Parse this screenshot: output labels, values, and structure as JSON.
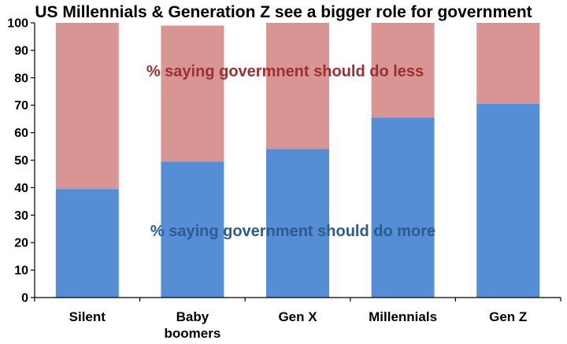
{
  "chart_data": {
    "type": "bar",
    "stacked": true,
    "title": "US Millennials & Generation Z see a bigger role for government",
    "categories": [
      "Silent",
      "Baby boomers",
      "Gen X",
      "Millennials",
      "Gen Z"
    ],
    "category_lines": [
      [
        "Silent"
      ],
      [
        "Baby",
        "boomers"
      ],
      [
        "Gen X"
      ],
      [
        "Millennials"
      ],
      [
        "Gen Z"
      ]
    ],
    "series": [
      {
        "name": "% saying government should do more",
        "color": "#558ed5",
        "values": [
          39.5,
          49.5,
          54,
          65.5,
          70.5
        ]
      },
      {
        "name": "% saying government should do less",
        "color": "#d99594",
        "values": [
          60.5,
          49.5,
          46,
          34.5,
          29.5
        ]
      }
    ],
    "ylim": [
      0,
      100
    ],
    "yticks": [
      0,
      10,
      20,
      30,
      40,
      50,
      60,
      70,
      80,
      90,
      100
    ],
    "grid": false,
    "annotations": {
      "less": "% saying govermnent should do less",
      "more": "% saying government should do more"
    }
  }
}
